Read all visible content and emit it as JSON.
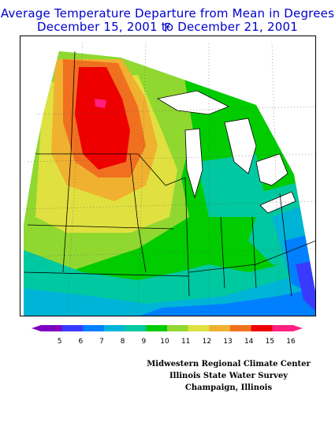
{
  "title": {
    "line1": "Average Temperature Departure from Mean in Degrees F",
    "line2": "December 15, 2001  to  December 21, 2001"
  },
  "legend": {
    "labels": [
      "5",
      "6",
      "7",
      "8",
      "9",
      "10",
      "11",
      "12",
      "13",
      "14",
      "15",
      "16"
    ],
    "colors": [
      "#8000c0",
      "#3a3aff",
      "#0080ff",
      "#00b4d8",
      "#00c8a0",
      "#00cc00",
      "#90d830",
      "#e0e040",
      "#f0b030",
      "#f07020",
      "#ee0000",
      "#ff2080"
    ]
  },
  "credits": {
    "line1": "Midwestern Regional Climate Center",
    "line2": "Illinois State Water Survey",
    "line3": "Champaign, Illinois"
  }
}
